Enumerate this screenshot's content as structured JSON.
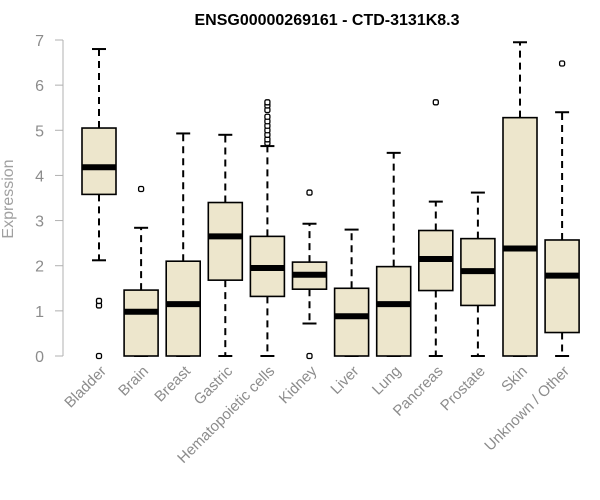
{
  "chart_data": {
    "type": "boxplot",
    "title": "ENSG00000269161 - CTD-3131K8.3",
    "xlabel": "",
    "ylabel": "Expression",
    "ylim": [
      0,
      7
    ],
    "yticks": [
      0,
      1,
      2,
      3,
      4,
      5,
      6,
      7
    ],
    "grid": false,
    "box_fill": "#ede6cc",
    "categories": [
      "Bladder",
      "Brain",
      "Breast",
      "Gastric",
      "Hematopoietic cells",
      "Kidney",
      "Liver",
      "Lung",
      "Pancreas",
      "Prostate",
      "Skin",
      "Unknown / Other"
    ],
    "boxes": [
      {
        "whisker_low": 2.12,
        "q1": 3.58,
        "median": 4.18,
        "q3": 5.05,
        "whisker_high": 6.8,
        "outliers": [
          1.12,
          1.22,
          0.0
        ]
      },
      {
        "whisker_low": 0.0,
        "q1": 0.0,
        "median": 0.98,
        "q3": 1.46,
        "whisker_high": 2.84,
        "outliers": [
          3.7
        ]
      },
      {
        "whisker_low": 0.0,
        "q1": 0.0,
        "median": 1.15,
        "q3": 2.1,
        "whisker_high": 4.93,
        "outliers": []
      },
      {
        "whisker_low": 0.0,
        "q1": 1.68,
        "median": 2.65,
        "q3": 3.4,
        "whisker_high": 4.9,
        "outliers": []
      },
      {
        "whisker_low": 0.0,
        "q1": 1.32,
        "median": 1.95,
        "q3": 2.65,
        "whisker_high": 4.65,
        "outliers": [
          4.72,
          4.8,
          4.9,
          5.0,
          5.1,
          5.2,
          5.3,
          5.45,
          5.55,
          5.62
        ]
      },
      {
        "whisker_low": 0.72,
        "q1": 1.48,
        "median": 1.8,
        "q3": 2.08,
        "whisker_high": 2.93,
        "outliers": [
          3.62,
          0.0
        ]
      },
      {
        "whisker_low": 0.0,
        "q1": 0.0,
        "median": 0.88,
        "q3": 1.5,
        "whisker_high": 2.8,
        "outliers": []
      },
      {
        "whisker_low": 0.0,
        "q1": 0.0,
        "median": 1.15,
        "q3": 1.98,
        "whisker_high": 4.5,
        "outliers": []
      },
      {
        "whisker_low": 0.0,
        "q1": 1.45,
        "median": 2.15,
        "q3": 2.78,
        "whisker_high": 3.42,
        "outliers": [
          5.62
        ]
      },
      {
        "whisker_low": 0.0,
        "q1": 1.12,
        "median": 1.88,
        "q3": 2.6,
        "whisker_high": 3.62,
        "outliers": []
      },
      {
        "whisker_low": 0.0,
        "q1": 0.0,
        "median": 2.38,
        "q3": 5.28,
        "whisker_high": 6.95,
        "outliers": []
      },
      {
        "whisker_low": 0.0,
        "q1": 0.52,
        "median": 1.78,
        "q3": 2.57,
        "whisker_high": 5.4,
        "outliers": [
          6.48
        ]
      }
    ]
  }
}
